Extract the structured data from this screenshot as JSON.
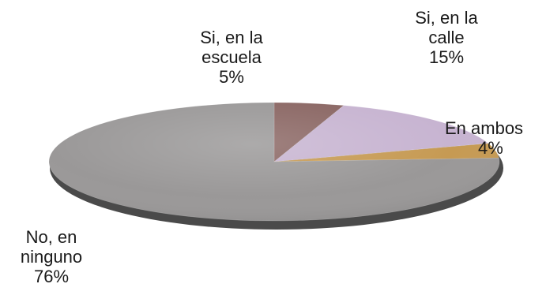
{
  "chart_data": {
    "type": "pie",
    "style": "3d-tilted",
    "title": "",
    "slices": [
      {
        "name_lines": [
          "Si, en la",
          "escuela"
        ],
        "value": 5,
        "label": "5%",
        "color": "#8a6663"
      },
      {
        "name_lines": [
          "Si, en la",
          "calle"
        ],
        "value": 15,
        "label": "15%",
        "color": "#c7b4d1"
      },
      {
        "name_lines": [
          "En ambos"
        ],
        "value": 4,
        "label": "4%",
        "color": "#c69a53"
      },
      {
        "name_lines": [
          "No, en",
          "ninguno"
        ],
        "value": 76,
        "label": "76%",
        "color": "#9a9898"
      }
    ],
    "start_angle_deg": -90,
    "direction": "clockwise",
    "legend": "none"
  }
}
